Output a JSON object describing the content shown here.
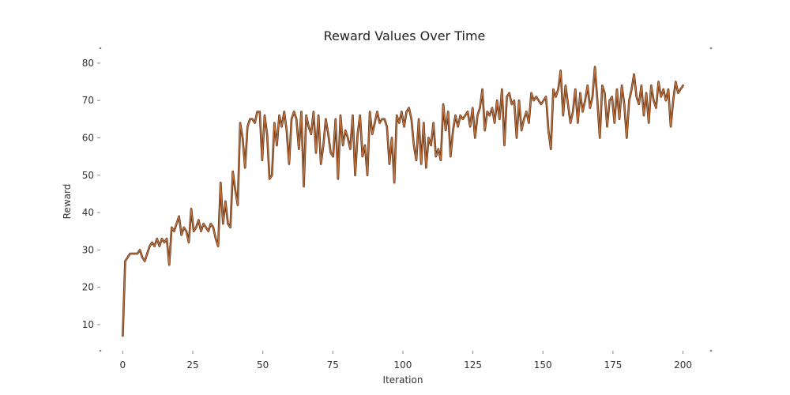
{
  "chart_data": {
    "type": "line",
    "title": "Reward Values Over Time",
    "xlabel": "Iteration",
    "ylabel": "Reward",
    "xlim": [
      -8,
      210
    ],
    "ylim": [
      3,
      84
    ],
    "xticks": [
      0,
      25,
      50,
      75,
      100,
      125,
      150,
      175,
      200
    ],
    "yticks": [
      10,
      20,
      30,
      40,
      50,
      60,
      70,
      80
    ],
    "grid": false,
    "legend": "none",
    "colors": {
      "line": "#c8743c",
      "line_edge": "#4a2a14"
    },
    "series": [
      {
        "values": [
          7,
          27,
          28,
          29,
          29,
          29,
          29,
          30,
          28,
          27,
          29,
          31,
          32,
          31,
          33,
          31,
          33,
          32,
          33,
          26,
          36,
          35,
          37,
          39,
          34,
          36,
          35,
          32,
          41,
          35,
          36,
          38,
          35,
          37,
          36,
          35,
          37,
          36,
          33,
          31,
          48,
          37,
          43,
          37,
          36,
          51,
          46,
          42,
          64,
          60,
          52,
          63,
          65,
          65,
          64,
          67,
          67,
          54,
          66,
          61,
          49,
          50,
          64,
          58,
          66,
          63,
          67,
          62,
          53,
          65,
          67,
          65,
          57,
          67,
          47,
          66,
          63,
          61,
          67,
          56,
          66,
          53,
          58,
          65,
          61,
          56,
          55,
          65,
          49,
          66,
          58,
          62,
          60,
          57,
          66,
          50,
          61,
          66,
          55,
          58,
          50,
          67,
          61,
          64,
          67,
          64,
          65,
          65,
          63,
          53,
          60,
          48,
          66,
          64,
          67,
          63,
          67,
          68,
          65,
          58,
          54,
          65,
          53,
          64,
          52,
          60,
          58,
          64,
          55,
          57,
          54,
          69,
          62,
          67,
          55,
          62,
          66,
          63,
          66,
          65,
          66,
          67,
          63,
          68,
          60,
          66,
          68,
          73,
          62,
          67,
          66,
          68,
          64,
          70,
          65,
          73,
          58,
          71,
          72,
          69,
          70,
          60,
          70,
          62,
          65,
          67,
          64,
          72,
          70,
          71,
          70,
          69,
          70,
          71,
          62,
          57,
          73,
          71,
          73,
          78,
          66,
          74,
          69,
          64,
          67,
          73,
          64,
          72,
          67,
          70,
          74,
          68,
          71,
          79,
          70,
          60,
          74,
          72,
          63,
          70,
          71,
          64,
          73,
          65,
          74,
          69,
          60,
          70,
          73,
          77,
          71,
          69,
          74,
          66,
          72,
          64,
          74,
          70,
          68,
          75,
          71,
          73,
          70,
          73,
          63,
          70,
          75,
          72,
          73,
          74
        ]
      }
    ]
  }
}
